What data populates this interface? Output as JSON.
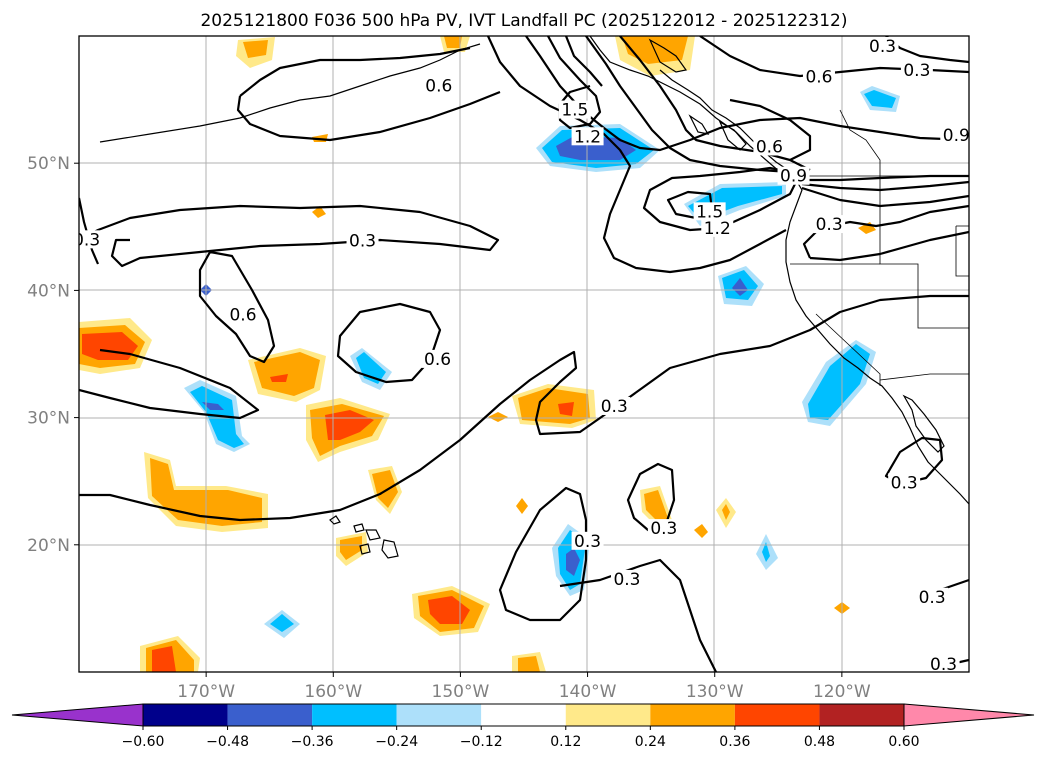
{
  "chart_data": {
    "type": "map-contour",
    "title": "2025121800 F036 500 hPa PV, IVT Landfall PC (2025122012 - 2025122312)",
    "projection": "lat-lon",
    "lon_range": [
      -180,
      -110
    ],
    "lat_range": [
      10,
      60
    ],
    "lon_ticks": [
      {
        "value": -170,
        "label": "170°W"
      },
      {
        "value": -160,
        "label": "160°W"
      },
      {
        "value": -150,
        "label": "150°W"
      },
      {
        "value": -140,
        "label": "140°W"
      },
      {
        "value": -130,
        "label": "130°W"
      },
      {
        "value": -120,
        "label": "120°W"
      }
    ],
    "lat_ticks": [
      {
        "value": 20,
        "label": "20°N"
      },
      {
        "value": 30,
        "label": "30°N"
      },
      {
        "value": 40,
        "label": "40°N"
      },
      {
        "value": 50,
        "label": "50°N"
      }
    ],
    "grid": true,
    "colorbar": {
      "orientation": "horizontal",
      "extend": "both",
      "levels": [
        -0.6,
        -0.48,
        -0.36,
        -0.24,
        -0.12,
        0.12,
        0.24,
        0.36,
        0.48,
        0.6
      ],
      "tick_labels": [
        "−0.60",
        "−0.48",
        "−0.36",
        "−0.24",
        "−0.12",
        "0.12",
        "0.24",
        "0.36",
        "0.48",
        "0.60"
      ],
      "colors": [
        "#9932cc",
        "#00008b",
        "#3a5fcd",
        "#00bfff",
        "#ade0fa",
        "#ffffff",
        "#ffe98a",
        "#ffa500",
        "#ff4500",
        "#b22222",
        "#ff88aa"
      ]
    },
    "contour_labels": [
      {
        "text": "0.6",
        "lon": -151.7,
        "lat": 55.8
      },
      {
        "text": "0.6",
        "lon": -121.8,
        "lat": 56.5
      },
      {
        "text": "0.3",
        "lon": -116.8,
        "lat": 58.9
      },
      {
        "text": "0.3",
        "lon": -114.1,
        "lat": 57.0
      },
      {
        "text": "0.9",
        "lon": -111.0,
        "lat": 51.9
      },
      {
        "text": "1.5",
        "lon": -141.0,
        "lat": 53.9
      },
      {
        "text": "1.2",
        "lon": -140.0,
        "lat": 51.8
      },
      {
        "text": "0.6",
        "lon": -125.7,
        "lat": 51.0
      },
      {
        "text": "0.9",
        "lon": -123.8,
        "lat": 48.7
      },
      {
        "text": "1.5",
        "lon": -130.4,
        "lat": 45.9
      },
      {
        "text": "1.2",
        "lon": -129.8,
        "lat": 44.6
      },
      {
        "text": "0.3",
        "lon": -121.0,
        "lat": 44.9
      },
      {
        "text": "0.3",
        "lon": -179.4,
        "lat": 43.7
      },
      {
        "text": "0.3",
        "lon": -157.7,
        "lat": 43.6
      },
      {
        "text": "0.6",
        "lon": -167.1,
        "lat": 37.8
      },
      {
        "text": "0.6",
        "lon": -151.8,
        "lat": 34.3
      },
      {
        "text": "0.3",
        "lon": -137.9,
        "lat": 30.6
      },
      {
        "text": "0.3",
        "lon": -140.0,
        "lat": 20.0
      },
      {
        "text": "0.3",
        "lon": -134.0,
        "lat": 21.0
      },
      {
        "text": "0.3",
        "lon": -136.9,
        "lat": 17.0
      },
      {
        "text": "0.3",
        "lon": -115.1,
        "lat": 24.6
      },
      {
        "text": "0.3",
        "lon": -112.9,
        "lat": 15.6
      },
      {
        "text": "0.3",
        "lon": -112.0,
        "lat": 10.3
      }
    ]
  }
}
